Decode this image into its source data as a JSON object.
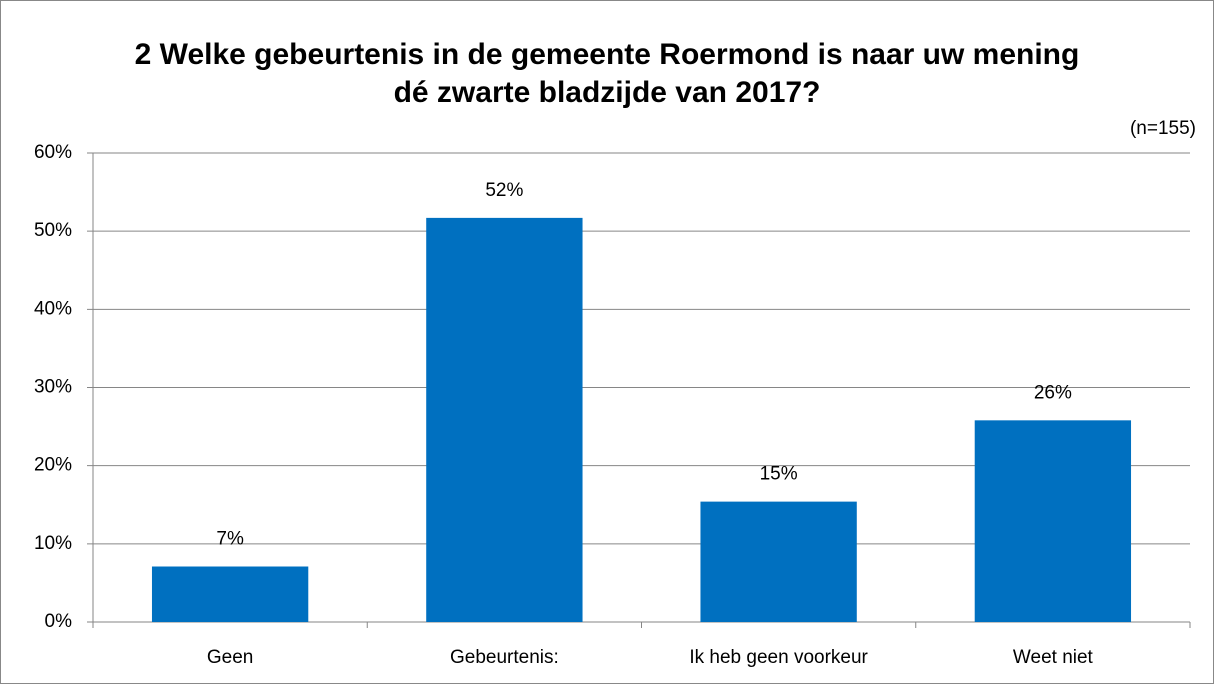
{
  "chart_data": {
    "type": "bar",
    "title": "2 Welke gebeurtenis in de gemeente Roermond is naar uw mening dé zwarte bladzijde van 2017?",
    "subtitle": "(n=155)",
    "categories": [
      "Geen",
      "Gebeurtenis:",
      "Ik heb geen voorkeur",
      "Weet niet"
    ],
    "values": [
      7.1,
      51.7,
      15.4,
      25.8
    ],
    "value_labels": [
      "7%",
      "52%",
      "15%",
      "26%"
    ],
    "color": "#0070c0",
    "ylim": [
      0,
      60
    ],
    "yticks": [
      {
        "value": 0,
        "label": "0%"
      },
      {
        "value": 10,
        "label": "10%"
      },
      {
        "value": 20,
        "label": "20%"
      },
      {
        "value": 30,
        "label": "30%"
      },
      {
        "value": 40,
        "label": "40%"
      },
      {
        "value": 50,
        "label": "50%"
      },
      {
        "value": 60,
        "label": "60%"
      }
    ],
    "grid": true
  }
}
